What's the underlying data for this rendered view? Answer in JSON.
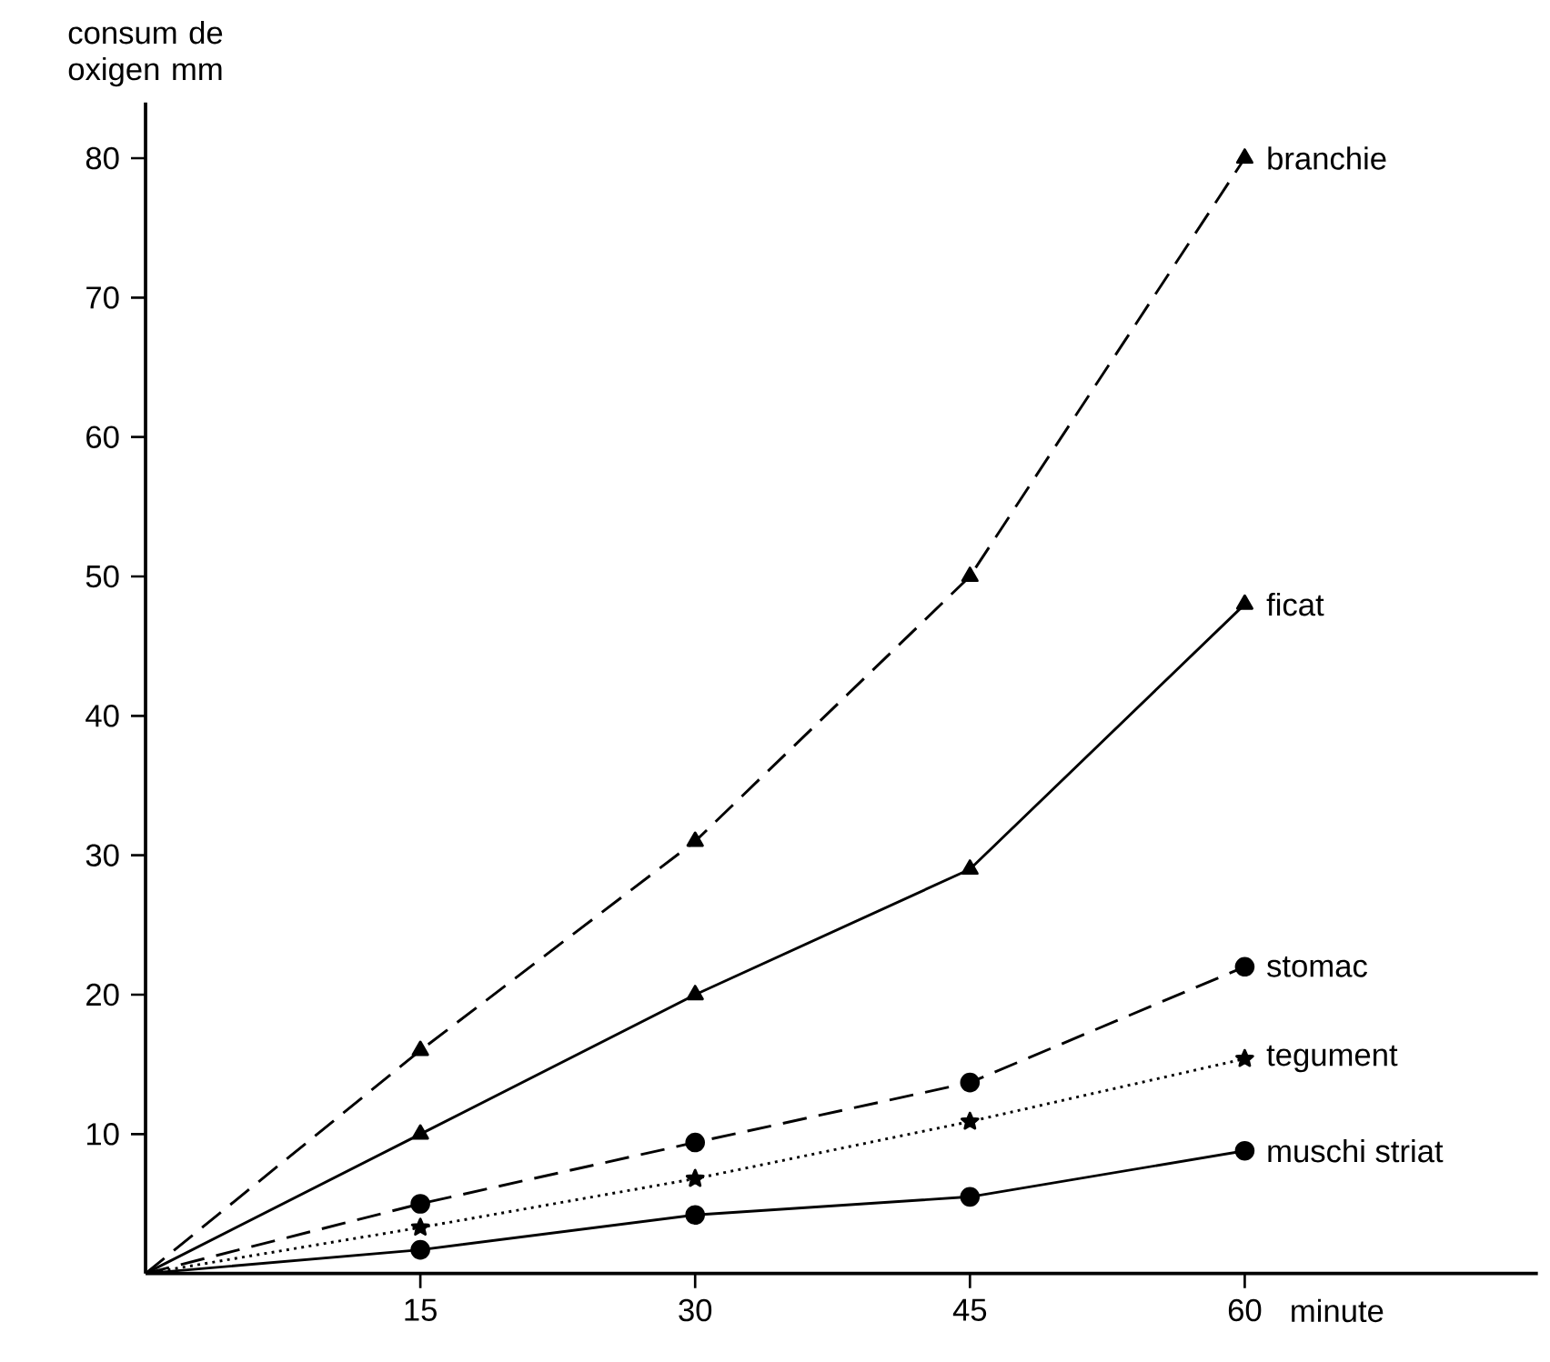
{
  "chart_data": {
    "type": "line",
    "ylabel": "consum de oxigen mm",
    "xlabel": "minute",
    "x": [
      0,
      15,
      30,
      45,
      60
    ],
    "series": [
      {
        "name": "branchie",
        "color": "#000000",
        "values": [
          0,
          16,
          31,
          50,
          80
        ],
        "marker": "triangle",
        "line_style": "dashed"
      },
      {
        "name": "ficat",
        "color": "#000000",
        "values": [
          0,
          10,
          20,
          29,
          48
        ],
        "marker": "triangle",
        "line_style": "solid"
      },
      {
        "name": "stomac",
        "color": "#000000",
        "values": [
          0,
          5,
          9.4,
          13.7,
          22
        ],
        "marker": "circle",
        "line_style": "dashed"
      },
      {
        "name": "tegument",
        "color": "#000000",
        "values": [
          0,
          3.3,
          6.8,
          10.9,
          15.4
        ],
        "marker": "star",
        "line_style": "dotted"
      },
      {
        "name": "muschi striat",
        "color": "#000000",
        "values": [
          0,
          1.7,
          4.2,
          5.5,
          8.8
        ],
        "marker": "circle",
        "line_style": "solid"
      }
    ],
    "xlim": [
      0,
      76
    ],
    "ylim": [
      0,
      84
    ],
    "xticks": [
      15,
      30,
      45,
      60
    ],
    "yticks": [
      10,
      20,
      30,
      40,
      50,
      60,
      70,
      80
    ],
    "grid": false
  }
}
